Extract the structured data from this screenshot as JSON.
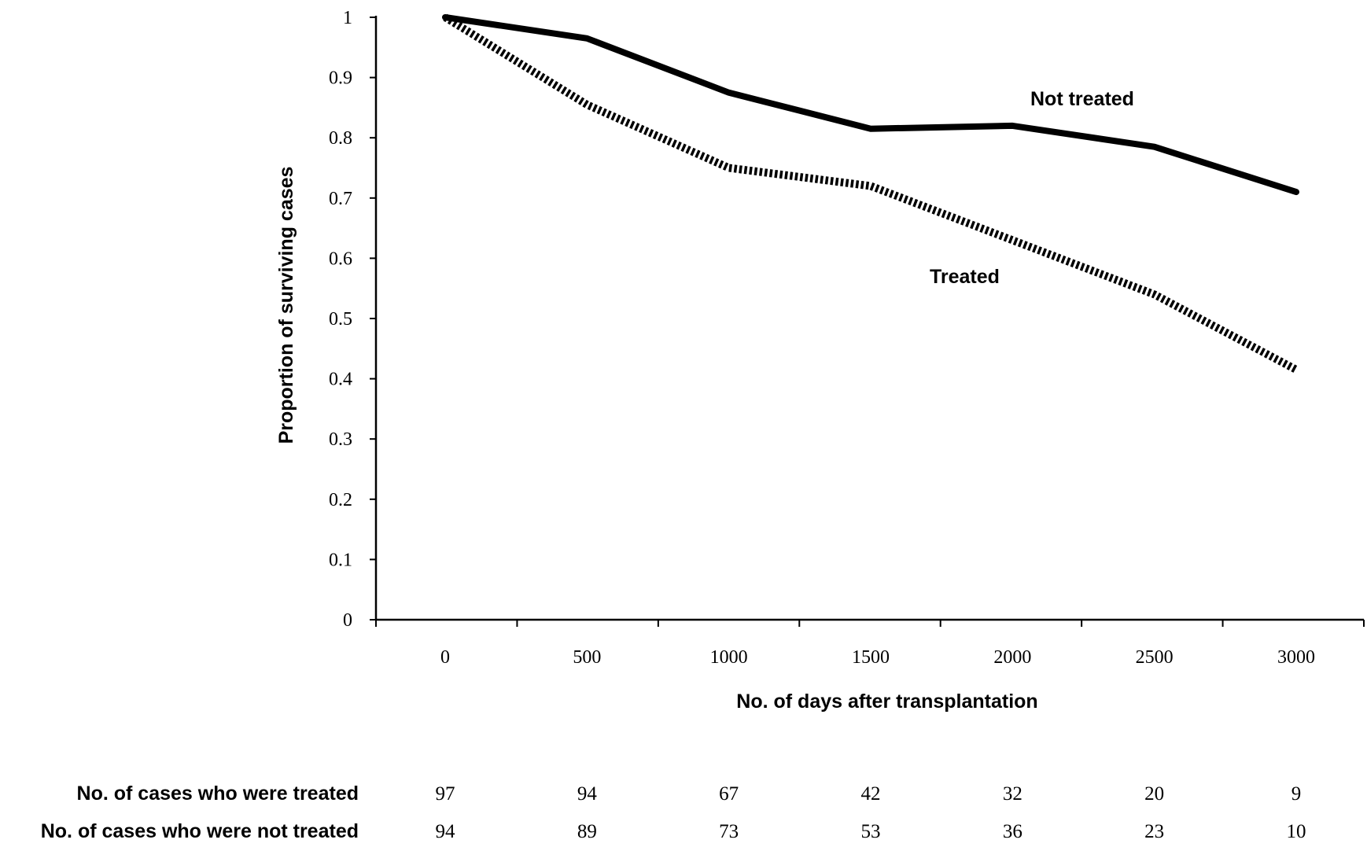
{
  "chart_data": {
    "type": "line",
    "xlabel": "No. of days after transplantation",
    "ylabel": "Proportion of surviving cases",
    "xlim": [
      0,
      3000
    ],
    "ylim": [
      0,
      1
    ],
    "x_ticks": [
      "0",
      "500",
      "1000",
      "1500",
      "2000",
      "2500",
      "3000"
    ],
    "y_ticks": [
      "0",
      "0.1",
      "0.2",
      "0.3",
      "0.4",
      "0.5",
      "0.6",
      "0.7",
      "0.8",
      "0.9",
      "1"
    ],
    "grid": false,
    "legend": "none",
    "series": [
      {
        "name": "Not treated",
        "style": "solid",
        "color": "#000000",
        "x": [
          0,
          500,
          1000,
          1500,
          2000,
          2500,
          3000
        ],
        "y": [
          1.0,
          0.965,
          0.875,
          0.815,
          0.82,
          0.785,
          0.71
        ]
      },
      {
        "name": "Treated",
        "style": "dotted",
        "color": "#000000",
        "x": [
          0,
          500,
          1000,
          1500,
          2000,
          2500,
          3000
        ],
        "y": [
          1.0,
          0.855,
          0.75,
          0.72,
          0.63,
          0.54,
          0.415
        ]
      }
    ],
    "risk_table": {
      "rows": [
        {
          "label": "No. of cases who were treated",
          "values": [
            "97",
            "94",
            "67",
            "42",
            "32",
            "20",
            "9"
          ]
        },
        {
          "label": "No. of cases who were not treated",
          "values": [
            "94",
            "89",
            "73",
            "53",
            "36",
            "23",
            "10"
          ]
        }
      ]
    }
  }
}
